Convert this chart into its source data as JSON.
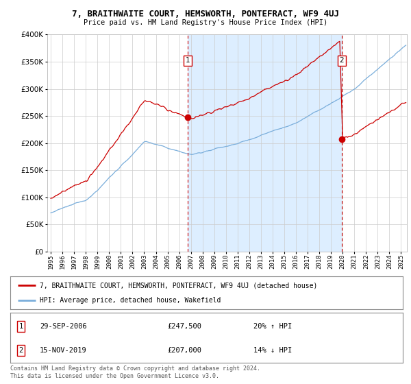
{
  "title": "7, BRAITHWAITE COURT, HEMSWORTH, PONTEFRACT, WF9 4UJ",
  "subtitle": "Price paid vs. HM Land Registry's House Price Index (HPI)",
  "legend_label_red": "7, BRAITHWAITE COURT, HEMSWORTH, PONTEFRACT, WF9 4UJ (detached house)",
  "legend_label_blue": "HPI: Average price, detached house, Wakefield",
  "sale1_date": "29-SEP-2006",
  "sale1_price": "£247,500",
  "sale1_hpi": "20% ↑ HPI",
  "sale2_date": "15-NOV-2019",
  "sale2_price": "£207,000",
  "sale2_hpi": "14% ↓ HPI",
  "footer": "Contains HM Land Registry data © Crown copyright and database right 2024.\nThis data is licensed under the Open Government Licence v3.0.",
  "ylim": [
    0,
    400000
  ],
  "yticks": [
    0,
    50000,
    100000,
    150000,
    200000,
    250000,
    300000,
    350000,
    400000
  ],
  "sale1_x": 2006.75,
  "sale1_y": 247500,
  "sale2_x": 2019.875,
  "sale2_y": 207000,
  "red_color": "#cc0000",
  "blue_color": "#7aaedb",
  "fill_color": "#ddeeff",
  "vline_color": "#cc0000",
  "grid_color": "#cccccc",
  "bg_color": "#ffffff",
  "xlim_left": 1994.7,
  "xlim_right": 2025.5
}
